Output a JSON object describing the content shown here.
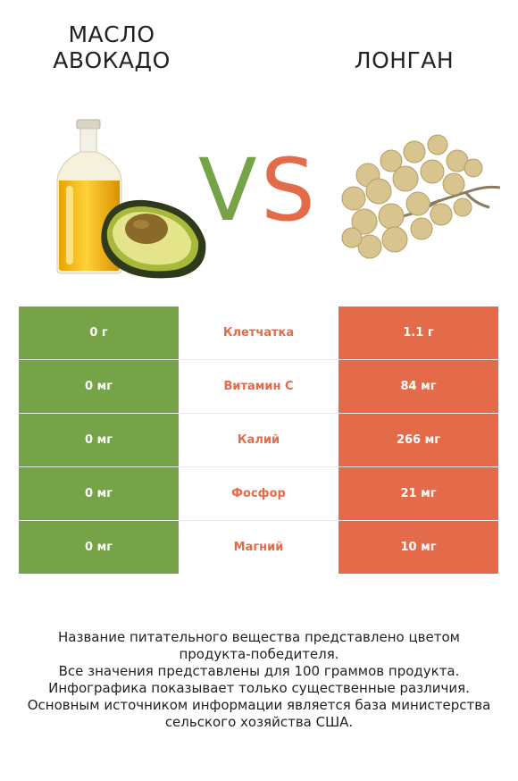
{
  "left_product": {
    "title_line1": "МАСЛО",
    "title_line2": "АВОКАДО"
  },
  "right_product": {
    "title": "ЛОНГАН"
  },
  "vs": {
    "v": "V",
    "s": "S"
  },
  "colors": {
    "left": "#77a348",
    "right": "#e46b4a",
    "nutrient_text": "#e46b4a"
  },
  "table": {
    "rows": [
      {
        "nutrient": "Клетчатка",
        "left": "0 г",
        "right": "1.1 г"
      },
      {
        "nutrient": "Витамин C",
        "left": "0 мг",
        "right": "84 мг"
      },
      {
        "nutrient": "Калий",
        "left": "0 мг",
        "right": "266 мг"
      },
      {
        "nutrient": "Фосфор",
        "left": "0 мг",
        "right": "21 мг"
      },
      {
        "nutrient": "Магний",
        "left": "0 мг",
        "right": "10 мг"
      }
    ]
  },
  "footer": {
    "line1": "Название питательного вещества представлено цветом",
    "line2": "продукта-победителя.",
    "line3": "Все значения представлены для 100 граммов продукта.",
    "line4": "Инфографика показывает только существенные различия.",
    "line5": "Основным источником информации является база министерства",
    "line6": "сельского хозяйства США."
  }
}
